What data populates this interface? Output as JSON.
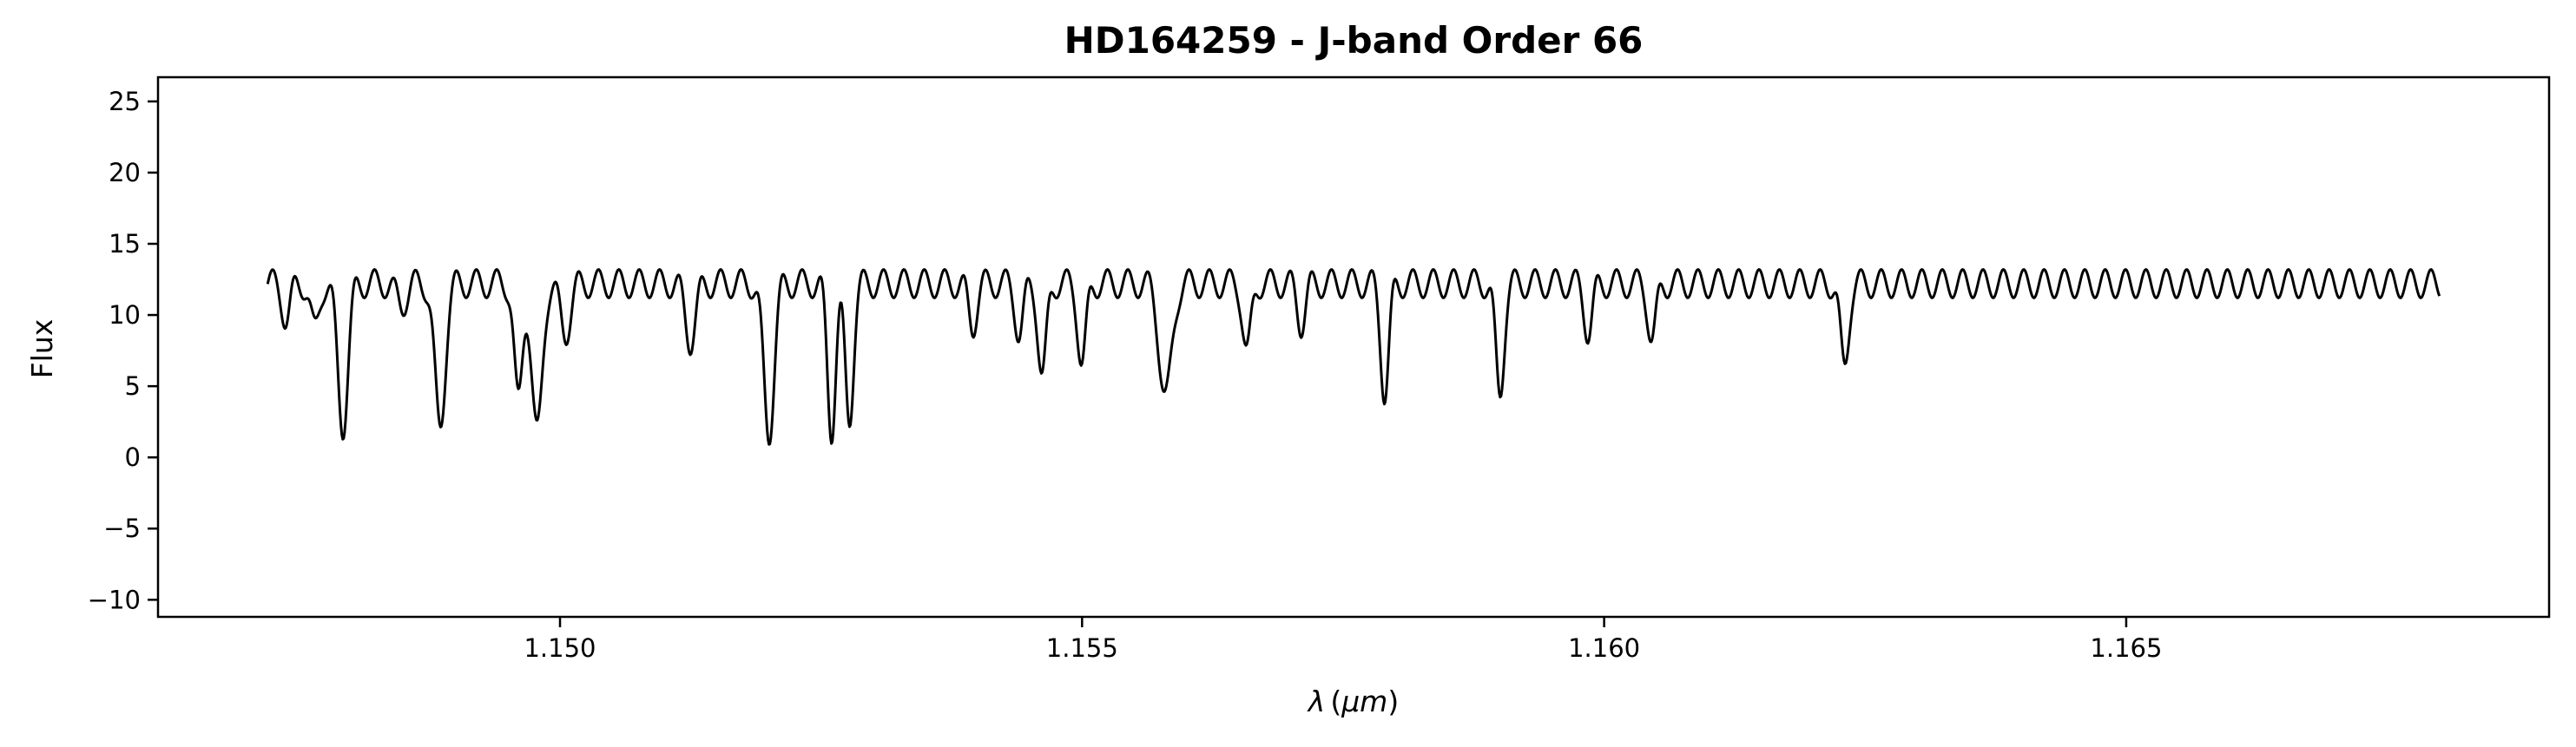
{
  "chart_data": {
    "type": "line",
    "title": "HD164259 - J-band Order 66",
    "xlabel": {
      "symbol": "λ",
      "unit": "μm"
    },
    "ylabel": "Flux",
    "xlim": [
      1.14615,
      1.16905
    ],
    "ylim": [
      -11.2,
      26.7
    ],
    "xticks": [
      {
        "value": 1.15,
        "label": "1.150"
      },
      {
        "value": 1.155,
        "label": "1.155"
      },
      {
        "value": 1.16,
        "label": "1.160"
      },
      {
        "value": 1.165,
        "label": "1.165"
      }
    ],
    "yticks": [
      {
        "value": 25,
        "label": "25"
      },
      {
        "value": 20,
        "label": "20"
      },
      {
        "value": 15,
        "label": "15"
      },
      {
        "value": 10,
        "label": "10"
      },
      {
        "value": 5,
        "label": "5"
      },
      {
        "value": 0,
        "label": "0"
      },
      {
        "value": -5,
        "label": "−5"
      },
      {
        "value": -10,
        "label": "−10"
      }
    ],
    "grid": false,
    "line_color": "#000000",
    "series": [
      {
        "x_start": 1.1472,
        "x_end": 1.168,
        "continuum": 12.2,
        "ripple_amplitude": 1.0,
        "ripple_period": 0.000195,
        "absorption_lines": [
          {
            "center": 1.1471,
            "depth": 6.5,
            "width": 3e-05
          },
          {
            "center": 1.14738,
            "depth": 2.5,
            "width": 4e-05
          },
          {
            "center": 1.14765,
            "depth": 3.3,
            "width": 4e-05
          },
          {
            "center": 1.14792,
            "depth": 10.0,
            "width": 5e-05
          },
          {
            "center": 1.14848,
            "depth": 1.5,
            "width": 5e-05
          },
          {
            "center": 1.14885,
            "depth": 10.2,
            "width": 5e-05
          },
          {
            "center": 1.1496,
            "depth": 8.3,
            "width": 4e-05
          },
          {
            "center": 1.14978,
            "depth": 10.6,
            "width": 5e-05
          },
          {
            "center": 1.15005,
            "depth": 3.5,
            "width": 5e-05
          },
          {
            "center": 1.15125,
            "depth": 4.0,
            "width": 5e-05
          },
          {
            "center": 1.152,
            "depth": 10.6,
            "width": 5e-05
          },
          {
            "center": 1.1526,
            "depth": 10.3,
            "width": 4e-05
          },
          {
            "center": 1.15277,
            "depth": 9.6,
            "width": 4e-05
          },
          {
            "center": 1.15395,
            "depth": 3.0,
            "width": 4e-05
          },
          {
            "center": 1.1544,
            "depth": 3.5,
            "width": 4e-05
          },
          {
            "center": 1.15462,
            "depth": 6.5,
            "width": 4e-05
          },
          {
            "center": 1.155,
            "depth": 5.6,
            "width": 4e-05
          },
          {
            "center": 1.1558,
            "depth": 8.0,
            "width": 6e-05
          },
          {
            "center": 1.15658,
            "depth": 4.8,
            "width": 4e-05
          },
          {
            "center": 1.1571,
            "depth": 2.8,
            "width": 4e-05
          },
          {
            "center": 1.1579,
            "depth": 7.7,
            "width": 4e-05
          },
          {
            "center": 1.159,
            "depth": 7.8,
            "width": 4e-05
          },
          {
            "center": 1.15985,
            "depth": 3.4,
            "width": 4e-05
          },
          {
            "center": 1.16046,
            "depth": 3.9,
            "width": 4e-05
          },
          {
            "center": 1.1623,
            "depth": 5.9,
            "width": 4e-05
          }
        ]
      }
    ]
  }
}
